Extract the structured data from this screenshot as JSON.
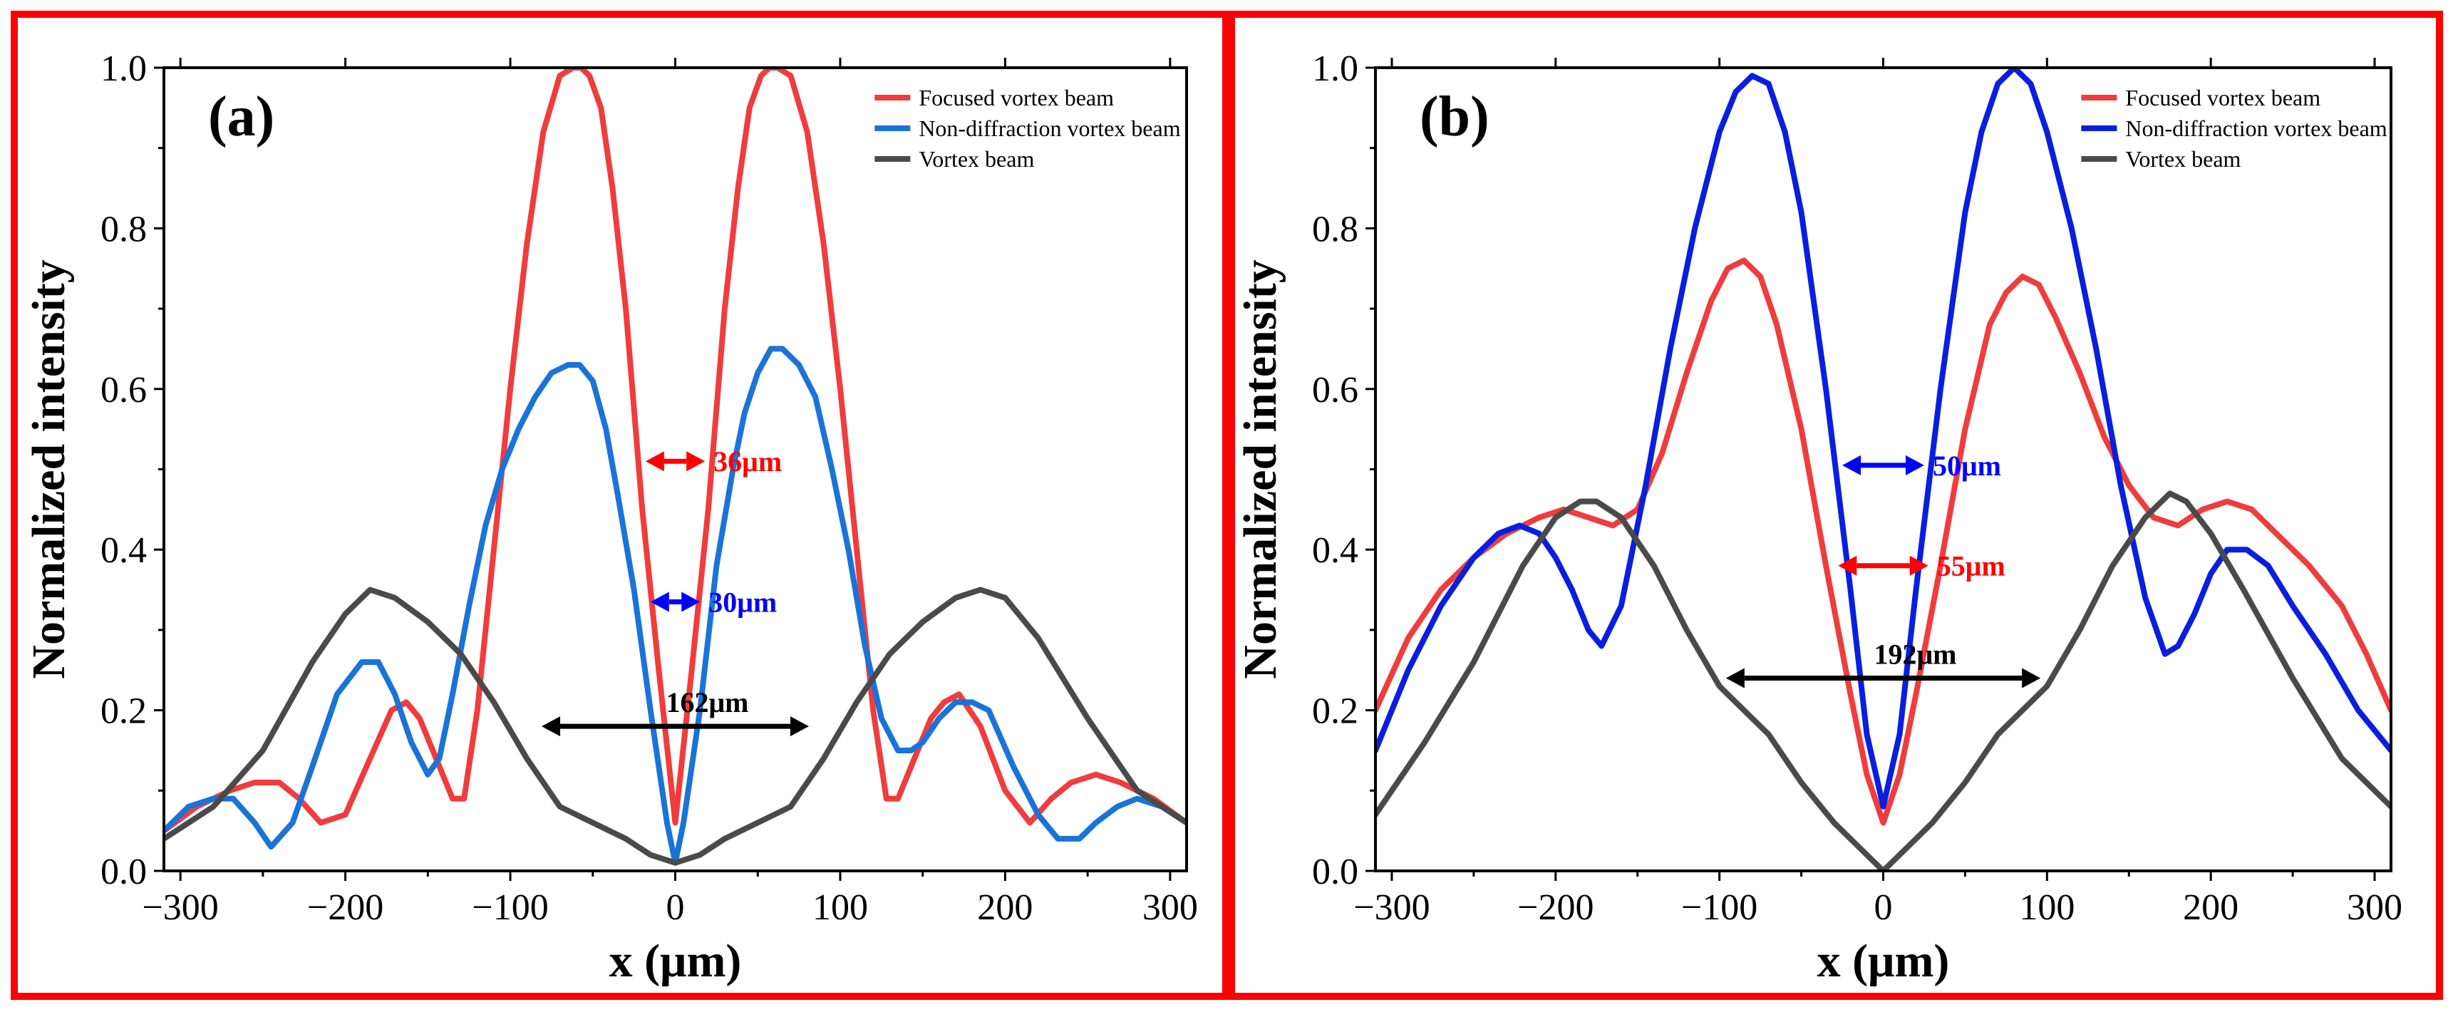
{
  "chart_data": [
    {
      "type": "line",
      "panel": "(a)",
      "xlabel": "x (μm)",
      "ylabel": "Normalized intensity",
      "xlim": [
        -310,
        310
      ],
      "ylim": [
        0,
        1.0
      ],
      "xticks": [
        -300,
        -200,
        -100,
        0,
        100,
        200,
        300
      ],
      "yticks": [
        0.0,
        0.2,
        0.4,
        0.6,
        0.8,
        1.0
      ],
      "xtick_labels": [
        "−300",
        "−200",
        "−100",
        "0",
        "100",
        "200",
        "300"
      ],
      "ytick_labels": [
        "0.0",
        "0.2",
        "0.4",
        "0.6",
        "0.8",
        "1.0"
      ],
      "legend_position": "top-right",
      "series": [
        {
          "name": "Focused vortex beam",
          "color": "#f03c3c",
          "x": [
            -310,
            -290,
            -270,
            -255,
            -240,
            -228,
            -215,
            -200,
            -185,
            -172,
            -163,
            -155,
            -145,
            -135,
            -128,
            -120,
            -110,
            -100,
            -90,
            -80,
            -70,
            -62,
            -57,
            -52,
            -45,
            -38,
            -30,
            -20,
            -10,
            0,
            10,
            20,
            30,
            38,
            45,
            52,
            57,
            62,
            70,
            80,
            90,
            100,
            110,
            120,
            128,
            135,
            145,
            155,
            163,
            172,
            185,
            200,
            215,
            228,
            240,
            255,
            270,
            290,
            310
          ],
          "values": [
            0.05,
            0.08,
            0.1,
            0.11,
            0.11,
            0.09,
            0.06,
            0.07,
            0.14,
            0.2,
            0.21,
            0.19,
            0.14,
            0.09,
            0.09,
            0.2,
            0.4,
            0.6,
            0.78,
            0.92,
            0.99,
            1.0,
            1.0,
            0.99,
            0.95,
            0.85,
            0.7,
            0.45,
            0.25,
            0.06,
            0.25,
            0.45,
            0.7,
            0.85,
            0.95,
            0.99,
            1.0,
            1.0,
            0.99,
            0.92,
            0.78,
            0.6,
            0.4,
            0.2,
            0.09,
            0.09,
            0.14,
            0.19,
            0.21,
            0.22,
            0.18,
            0.1,
            0.06,
            0.09,
            0.11,
            0.12,
            0.11,
            0.09,
            0.06
          ]
        },
        {
          "name": "Non-diffraction vortex beam",
          "color": "#1a73d8",
          "x": [
            -310,
            -295,
            -280,
            -268,
            -255,
            -245,
            -232,
            -220,
            -205,
            -190,
            -180,
            -170,
            -160,
            -150,
            -143,
            -135,
            -125,
            -115,
            -105,
            -95,
            -85,
            -75,
            -65,
            -58,
            -50,
            -42,
            -35,
            -25,
            -15,
            -5,
            0,
            5,
            15,
            25,
            35,
            42,
            50,
            58,
            65,
            75,
            85,
            95,
            105,
            115,
            125,
            135,
            143,
            150,
            160,
            170,
            180,
            190,
            205,
            220,
            232,
            245,
            255,
            268,
            280,
            295,
            310
          ],
          "values": [
            0.05,
            0.08,
            0.09,
            0.09,
            0.06,
            0.03,
            0.06,
            0.13,
            0.22,
            0.26,
            0.26,
            0.22,
            0.16,
            0.12,
            0.14,
            0.22,
            0.33,
            0.43,
            0.5,
            0.55,
            0.59,
            0.62,
            0.63,
            0.63,
            0.61,
            0.55,
            0.47,
            0.35,
            0.2,
            0.06,
            0.01,
            0.06,
            0.2,
            0.38,
            0.5,
            0.57,
            0.62,
            0.65,
            0.65,
            0.63,
            0.59,
            0.5,
            0.4,
            0.28,
            0.19,
            0.15,
            0.15,
            0.16,
            0.19,
            0.21,
            0.21,
            0.2,
            0.13,
            0.07,
            0.04,
            0.04,
            0.06,
            0.08,
            0.09,
            0.08,
            0.06
          ]
        },
        {
          "name": "Vortex beam",
          "color": "#4a4a4a",
          "x": [
            -310,
            -280,
            -250,
            -220,
            -200,
            -185,
            -170,
            -150,
            -130,
            -110,
            -90,
            -70,
            -50,
            -30,
            -15,
            0,
            15,
            30,
            50,
            70,
            90,
            110,
            130,
            150,
            170,
            185,
            200,
            220,
            250,
            280,
            310
          ],
          "values": [
            0.04,
            0.08,
            0.15,
            0.26,
            0.32,
            0.35,
            0.34,
            0.31,
            0.27,
            0.21,
            0.14,
            0.08,
            0.06,
            0.04,
            0.02,
            0.01,
            0.02,
            0.04,
            0.06,
            0.08,
            0.14,
            0.21,
            0.27,
            0.31,
            0.34,
            0.35,
            0.34,
            0.29,
            0.19,
            0.1,
            0.06
          ]
        }
      ],
      "annotations": [
        {
          "text": "36μm",
          "x_from": -18,
          "x_to": 18,
          "y": 0.51,
          "color": "#ff0000"
        },
        {
          "text": "30μm",
          "x_from": -15,
          "x_to": 15,
          "y": 0.335,
          "color": "#0000ff"
        },
        {
          "text": "162μm",
          "x_from": -81,
          "x_to": 81,
          "y": 0.18,
          "color": "#000000"
        }
      ]
    },
    {
      "type": "line",
      "panel": "(b)",
      "xlabel": "x (μm)",
      "ylabel": "Normalized intensity",
      "xlim": [
        -310,
        310
      ],
      "ylim": [
        0,
        1.0
      ],
      "xticks": [
        -300,
        -200,
        -100,
        0,
        100,
        200,
        300
      ],
      "yticks": [
        0.0,
        0.2,
        0.4,
        0.6,
        0.8,
        1.0
      ],
      "xtick_labels": [
        "−300",
        "−200",
        "−100",
        "0",
        "100",
        "200",
        "300"
      ],
      "ytick_labels": [
        "0.0",
        "0.2",
        "0.4",
        "0.6",
        "0.8",
        "1.0"
      ],
      "legend_position": "top-right",
      "series": [
        {
          "name": "Focused vortex beam",
          "color": "#f03c3c",
          "x": [
            -310,
            -290,
            -270,
            -250,
            -230,
            -210,
            -195,
            -180,
            -165,
            -150,
            -135,
            -120,
            -105,
            -95,
            -85,
            -75,
            -65,
            -50,
            -35,
            -20,
            -10,
            0,
            10,
            20,
            35,
            50,
            65,
            75,
            85,
            95,
            105,
            120,
            135,
            150,
            165,
            180,
            195,
            210,
            225,
            240,
            260,
            280,
            295,
            310
          ],
          "values": [
            0.2,
            0.29,
            0.35,
            0.39,
            0.42,
            0.44,
            0.45,
            0.44,
            0.43,
            0.45,
            0.52,
            0.62,
            0.71,
            0.75,
            0.76,
            0.74,
            0.68,
            0.55,
            0.38,
            0.22,
            0.12,
            0.06,
            0.12,
            0.22,
            0.38,
            0.55,
            0.68,
            0.72,
            0.74,
            0.73,
            0.69,
            0.62,
            0.54,
            0.48,
            0.44,
            0.43,
            0.45,
            0.46,
            0.45,
            0.42,
            0.38,
            0.33,
            0.27,
            0.2
          ]
        },
        {
          "name": "Non-diffraction vortex beam",
          "color": "#0a1ee0",
          "x": [
            -310,
            -290,
            -270,
            -250,
            -235,
            -222,
            -210,
            -200,
            -190,
            -180,
            -172,
            -160,
            -145,
            -130,
            -115,
            -100,
            -90,
            -80,
            -70,
            -60,
            -50,
            -35,
            -20,
            -10,
            0,
            10,
            20,
            35,
            50,
            60,
            70,
            80,
            90,
            100,
            115,
            130,
            145,
            160,
            172,
            180,
            190,
            200,
            210,
            222,
            235,
            250,
            270,
            290,
            310
          ],
          "values": [
            0.15,
            0.25,
            0.33,
            0.39,
            0.42,
            0.43,
            0.42,
            0.39,
            0.35,
            0.3,
            0.28,
            0.33,
            0.48,
            0.65,
            0.8,
            0.92,
            0.97,
            0.99,
            0.98,
            0.92,
            0.82,
            0.6,
            0.35,
            0.17,
            0.08,
            0.17,
            0.35,
            0.6,
            0.82,
            0.92,
            0.98,
            1.0,
            0.98,
            0.92,
            0.8,
            0.65,
            0.48,
            0.34,
            0.27,
            0.28,
            0.32,
            0.37,
            0.4,
            0.4,
            0.38,
            0.33,
            0.27,
            0.2,
            0.15
          ]
        },
        {
          "name": "Vortex beam",
          "color": "#4a4a4a",
          "x": [
            -310,
            -280,
            -250,
            -220,
            -200,
            -185,
            -175,
            -160,
            -140,
            -120,
            -100,
            -85,
            -70,
            -50,
            -30,
            -15,
            0,
            15,
            30,
            50,
            70,
            85,
            100,
            120,
            140,
            160,
            175,
            185,
            200,
            220,
            250,
            280,
            310
          ],
          "values": [
            0.07,
            0.16,
            0.26,
            0.38,
            0.44,
            0.46,
            0.46,
            0.44,
            0.38,
            0.3,
            0.23,
            0.2,
            0.17,
            0.11,
            0.06,
            0.03,
            0.0,
            0.03,
            0.06,
            0.11,
            0.17,
            0.2,
            0.23,
            0.3,
            0.38,
            0.44,
            0.47,
            0.46,
            0.42,
            0.35,
            0.24,
            0.14,
            0.08
          ]
        }
      ],
      "annotations": [
        {
          "text": "50μm",
          "x_from": -25,
          "x_to": 25,
          "y": 0.505,
          "color": "#0000ff"
        },
        {
          "text": "55μm",
          "x_from": -27.5,
          "x_to": 27.5,
          "y": 0.38,
          "color": "#ff0000"
        },
        {
          "text": "192μm",
          "x_from": -96,
          "x_to": 96,
          "y": 0.24,
          "color": "#000000"
        }
      ]
    }
  ]
}
